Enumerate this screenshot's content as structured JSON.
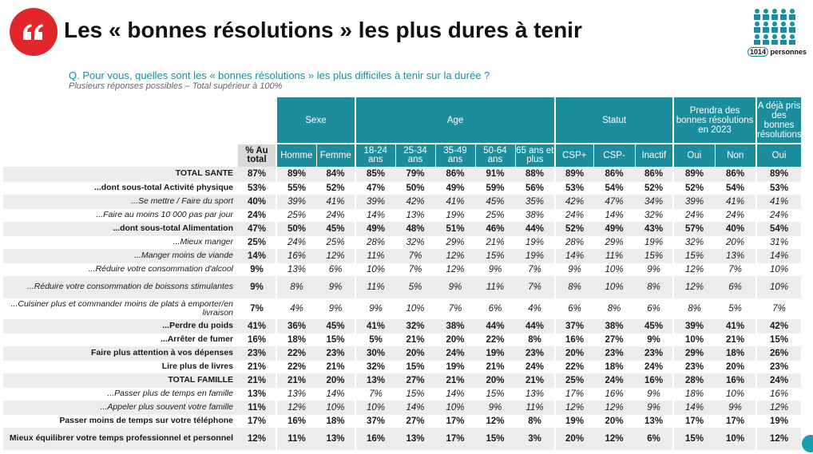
{
  "header": {
    "title": "Les « bonnes résolutions » les plus dures à tenir",
    "question": "Q. Pour vous, quelles sont les « bonnes résolutions » les plus difficiles à tenir sur la durée ?",
    "note": "Plusieurs réponses possibles – Total supérieur à 100%",
    "sample_count": "1014",
    "sample_label": "personnes",
    "brand_color": "#e3262b",
    "accent_color": "#1b8d9c"
  },
  "table": {
    "groups": [
      {
        "label": "Sexe"
      },
      {
        "label": "Age"
      },
      {
        "label": "Statut"
      },
      {
        "label": "Prendra des bonnes résolutions en 2023"
      },
      {
        "label": "A déjà pris des bonnes résolutions"
      }
    ],
    "total_header": "% Au total",
    "subheaders": [
      "Homme",
      "Femme",
      "18-24 ans",
      "25-34 ans",
      "35-49 ans",
      "50-64 ans",
      "65 ans et plus",
      "CSP+",
      "CSP-",
      "Inactif",
      "Oui",
      "Non",
      "Oui"
    ],
    "rows": [
      {
        "label": "TOTAL SANTE",
        "style": "b",
        "values": [
          "87%",
          "89%",
          "84%",
          "85%",
          "79%",
          "86%",
          "91%",
          "88%",
          "89%",
          "86%",
          "86%",
          "89%",
          "86%",
          "89%"
        ]
      },
      {
        "label": "...dont sous-total Activité physique",
        "style": "b",
        "values": [
          "53%",
          "55%",
          "52%",
          "47%",
          "50%",
          "49%",
          "59%",
          "56%",
          "53%",
          "54%",
          "52%",
          "52%",
          "54%",
          "53%"
        ]
      },
      {
        "label": "...Se mettre / Faire du sport",
        "style": "i",
        "values": [
          "40%",
          "39%",
          "41%",
          "39%",
          "42%",
          "41%",
          "45%",
          "35%",
          "42%",
          "47%",
          "34%",
          "39%",
          "41%",
          "41%"
        ]
      },
      {
        "label": "...Faire au moins 10 000 pas par jour",
        "style": "i",
        "values": [
          "24%",
          "25%",
          "24%",
          "14%",
          "13%",
          "19%",
          "25%",
          "38%",
          "24%",
          "14%",
          "32%",
          "24%",
          "24%",
          "24%"
        ]
      },
      {
        "label": "...dont sous-total Alimentation",
        "style": "b",
        "values": [
          "47%",
          "50%",
          "45%",
          "49%",
          "48%",
          "51%",
          "46%",
          "44%",
          "52%",
          "49%",
          "43%",
          "57%",
          "40%",
          "54%"
        ]
      },
      {
        "label": "...Mieux manger",
        "style": "i",
        "values": [
          "25%",
          "24%",
          "25%",
          "28%",
          "32%",
          "29%",
          "21%",
          "19%",
          "28%",
          "29%",
          "19%",
          "32%",
          "20%",
          "31%"
        ]
      },
      {
        "label": "...Manger moins de viande",
        "style": "i",
        "values": [
          "14%",
          "16%",
          "12%",
          "11%",
          "7%",
          "12%",
          "15%",
          "19%",
          "14%",
          "11%",
          "15%",
          "15%",
          "13%",
          "14%"
        ]
      },
      {
        "label": "...Réduire votre consommation d'alcool",
        "style": "i",
        "values": [
          "9%",
          "13%",
          "6%",
          "10%",
          "7%",
          "12%",
          "9%",
          "7%",
          "9%",
          "10%",
          "9%",
          "12%",
          "7%",
          "10%"
        ]
      },
      {
        "label": "...Réduire votre consommation de boissons stimulantes",
        "style": "i",
        "values": [
          "9%",
          "8%",
          "9%",
          "11%",
          "5%",
          "9%",
          "11%",
          "7%",
          "8%",
          "10%",
          "8%",
          "12%",
          "6%",
          "10%"
        ]
      },
      {
        "label": "...Cuisiner plus et commander moins de plats à emporter/en livraison",
        "style": "i",
        "values": [
          "7%",
          "4%",
          "9%",
          "9%",
          "10%",
          "7%",
          "6%",
          "4%",
          "6%",
          "8%",
          "6%",
          "8%",
          "5%",
          "7%"
        ]
      },
      {
        "label": "...Perdre du poids",
        "style": "b",
        "values": [
          "41%",
          "36%",
          "45%",
          "41%",
          "32%",
          "38%",
          "44%",
          "44%",
          "37%",
          "38%",
          "45%",
          "39%",
          "41%",
          "42%"
        ]
      },
      {
        "label": "...Arrêter de fumer",
        "style": "b",
        "values": [
          "16%",
          "18%",
          "15%",
          "5%",
          "21%",
          "20%",
          "22%",
          "8%",
          "16%",
          "27%",
          "9%",
          "10%",
          "21%",
          "15%"
        ]
      },
      {
        "label": "Faire plus attention à vos dépenses",
        "style": "b",
        "values": [
          "23%",
          "22%",
          "23%",
          "30%",
          "20%",
          "24%",
          "19%",
          "23%",
          "20%",
          "23%",
          "23%",
          "29%",
          "18%",
          "26%"
        ]
      },
      {
        "label": "Lire plus de livres",
        "style": "b",
        "values": [
          "21%",
          "22%",
          "21%",
          "32%",
          "15%",
          "19%",
          "21%",
          "24%",
          "22%",
          "18%",
          "24%",
          "23%",
          "20%",
          "23%"
        ]
      },
      {
        "label": "TOTAL FAMILLE",
        "style": "b",
        "values": [
          "21%",
          "21%",
          "20%",
          "13%",
          "27%",
          "21%",
          "20%",
          "21%",
          "25%",
          "24%",
          "16%",
          "28%",
          "16%",
          "24%"
        ]
      },
      {
        "label": "...Passer plus de temps en famille",
        "style": "i",
        "values": [
          "13%",
          "13%",
          "14%",
          "7%",
          "15%",
          "14%",
          "15%",
          "13%",
          "17%",
          "16%",
          "9%",
          "18%",
          "10%",
          "16%"
        ]
      },
      {
        "label": "...Appeler plus souvent votre famille",
        "style": "i",
        "values": [
          "11%",
          "12%",
          "10%",
          "10%",
          "14%",
          "10%",
          "9%",
          "11%",
          "12%",
          "12%",
          "9%",
          "14%",
          "9%",
          "12%"
        ]
      },
      {
        "label": "Passer moins de temps sur votre téléphone",
        "style": "b",
        "values": [
          "17%",
          "16%",
          "18%",
          "37%",
          "27%",
          "17%",
          "12%",
          "8%",
          "19%",
          "20%",
          "13%",
          "17%",
          "17%",
          "19%"
        ]
      },
      {
        "label": "Mieux équilibrer votre temps professionnel et personnel",
        "style": "b",
        "values": [
          "12%",
          "11%",
          "13%",
          "16%",
          "13%",
          "17%",
          "15%",
          "3%",
          "20%",
          "12%",
          "6%",
          "15%",
          "10%",
          "12%"
        ]
      }
    ]
  }
}
